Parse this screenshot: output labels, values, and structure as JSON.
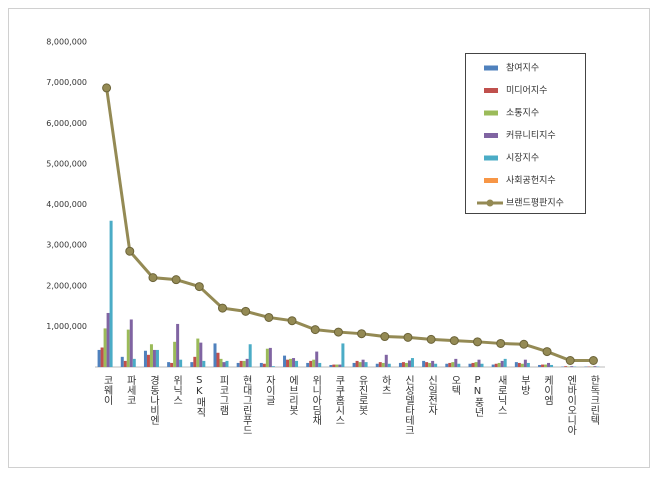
{
  "chart_data": {
    "type": "bar",
    "categories": [
      "코웨이",
      "파세코",
      "경동나비엔",
      "위닉스",
      "SK매직",
      "피코그램",
      "현대그린푸드",
      "자이글",
      "에브리봇",
      "위니아딤채",
      "쿠쿠홈시스",
      "유진로봇",
      "하츠",
      "신성델타테크",
      "신일전자",
      "오텍",
      "PN풍년",
      "새로닉스",
      "부방",
      "케이엠",
      "엔바이오니아",
      "한독크린텍"
    ],
    "series": [
      {
        "name": "참여지수",
        "color": "#4f81bd",
        "type": "bar",
        "values": [
          420000,
          250000,
          400000,
          120000,
          120000,
          580000,
          100000,
          100000,
          280000,
          100000,
          50000,
          100000,
          80000,
          100000,
          150000,
          80000,
          80000,
          60000,
          120000,
          50000,
          10000,
          10000
        ]
      },
      {
        "name": "미디어지수",
        "color": "#c0504d",
        "type": "bar",
        "values": [
          480000,
          150000,
          300000,
          100000,
          250000,
          350000,
          150000,
          80000,
          180000,
          150000,
          60000,
          150000,
          120000,
          120000,
          120000,
          100000,
          100000,
          80000,
          100000,
          60000,
          20000,
          10000
        ]
      },
      {
        "name": "소통지수",
        "color": "#9bbb59",
        "type": "bar",
        "values": [
          950000,
          920000,
          560000,
          620000,
          700000,
          200000,
          150000,
          450000,
          200000,
          180000,
          60000,
          120000,
          100000,
          100000,
          100000,
          120000,
          120000,
          100000,
          80000,
          60000,
          10000,
          10000
        ]
      },
      {
        "name": "커뮤니티지수",
        "color": "#8064a2",
        "type": "bar",
        "values": [
          1330000,
          1170000,
          420000,
          1060000,
          600000,
          120000,
          200000,
          470000,
          220000,
          380000,
          60000,
          180000,
          300000,
          160000,
          150000,
          200000,
          180000,
          150000,
          180000,
          100000,
          20000,
          20000
        ]
      },
      {
        "name": "시장지수",
        "color": "#4bacc6",
        "type": "bar",
        "values": [
          3600000,
          200000,
          420000,
          180000,
          150000,
          150000,
          560000,
          20000,
          150000,
          100000,
          580000,
          120000,
          80000,
          220000,
          80000,
          80000,
          80000,
          200000,
          100000,
          50000,
          10000,
          10000
        ]
      },
      {
        "name": "사회공헌지수",
        "color": "#f79646",
        "type": "bar",
        "values": [
          0,
          0,
          0,
          0,
          0,
          0,
          0,
          0,
          0,
          0,
          0,
          0,
          0,
          0,
          0,
          0,
          0,
          0,
          0,
          0,
          0,
          0
        ]
      },
      {
        "name": "브랜드평판지수",
        "color": "#948a54",
        "type": "line",
        "values": [
          6870000,
          2850000,
          2200000,
          2150000,
          1980000,
          1450000,
          1370000,
          1220000,
          1140000,
          920000,
          860000,
          820000,
          750000,
          730000,
          680000,
          650000,
          620000,
          580000,
          560000,
          380000,
          160000,
          160000
        ]
      }
    ],
    "ylim": [
      0,
      8000000
    ],
    "yticks": [
      {
        "value": 1000000,
        "label": "1,000,000"
      },
      {
        "value": 2000000,
        "label": "2,000,000"
      },
      {
        "value": 3000000,
        "label": "3,000,000"
      },
      {
        "value": 4000000,
        "label": "4,000,000"
      },
      {
        "value": 5000000,
        "label": "5,000,000"
      },
      {
        "value": 6000000,
        "label": "6,000,000"
      },
      {
        "value": 7000000,
        "label": "7,000,000"
      },
      {
        "value": 8000000,
        "label": "8,000,000"
      }
    ],
    "grid": false
  }
}
